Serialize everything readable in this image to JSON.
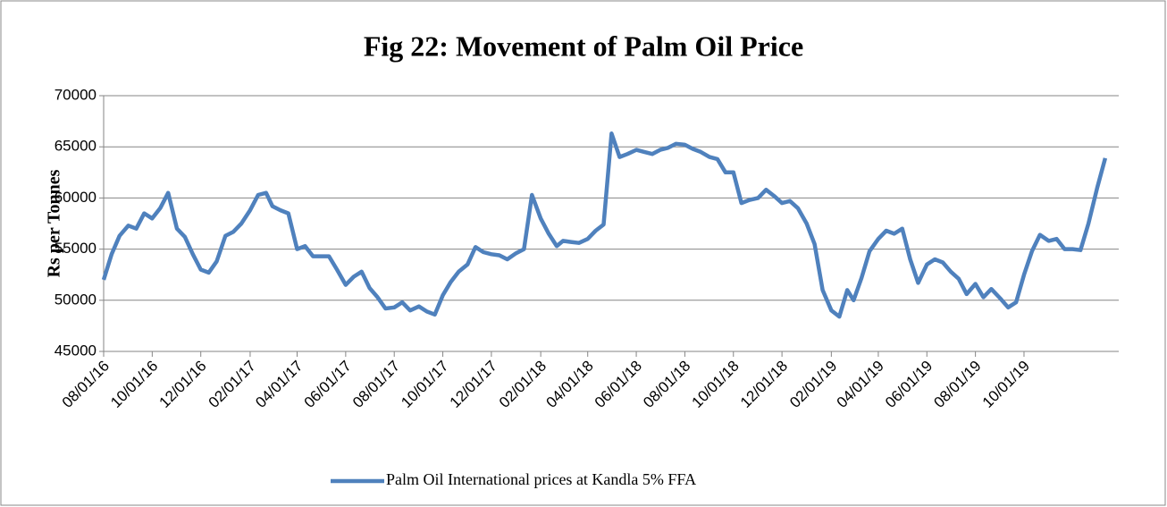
{
  "chart_data": {
    "type": "line",
    "title": "Fig 22: Movement of Palm Oil Price",
    "y_label": "Rs per Tonnes",
    "x": [
      "08/01/16",
      "08/11/16",
      "08/21/16",
      "09/01/16",
      "09/11/16",
      "09/21/16",
      "10/01/16",
      "10/11/16",
      "10/21/16",
      "11/01/16",
      "11/11/16",
      "11/21/16",
      "12/01/16",
      "12/11/16",
      "12/21/16",
      "01/01/17",
      "01/11/17",
      "01/21/17",
      "02/01/17",
      "02/11/17",
      "02/21/17",
      "03/01/17",
      "03/11/17",
      "03/21/17",
      "04/01/17",
      "04/11/17",
      "04/21/17",
      "05/01/17",
      "05/11/17",
      "05/21/17",
      "06/01/17",
      "06/11/17",
      "06/21/17",
      "07/01/17",
      "07/11/17",
      "07/21/17",
      "08/01/17",
      "08/11/17",
      "08/21/17",
      "09/01/17",
      "09/11/17",
      "09/21/17",
      "10/01/17",
      "10/11/17",
      "10/21/17",
      "11/01/17",
      "11/11/17",
      "11/21/17",
      "12/01/17",
      "12/11/17",
      "12/21/17",
      "01/01/18",
      "01/11/18",
      "01/21/18",
      "02/01/18",
      "02/11/18",
      "02/21/18",
      "03/01/18",
      "03/11/18",
      "03/21/18",
      "04/01/18",
      "04/11/18",
      "04/21/18",
      "05/01/18",
      "05/11/18",
      "05/21/18",
      "06/01/18",
      "06/11/18",
      "06/21/18",
      "07/01/18",
      "07/11/18",
      "07/21/18",
      "08/01/18",
      "08/11/18",
      "08/21/18",
      "09/01/18",
      "09/11/18",
      "09/21/18",
      "10/01/18",
      "10/11/18",
      "10/21/18",
      "11/01/18",
      "11/11/18",
      "11/21/18",
      "12/01/18",
      "12/11/18",
      "12/21/18",
      "01/01/19",
      "01/11/19",
      "01/21/19",
      "02/01/19",
      "02/11/19",
      "02/21/19",
      "03/01/19",
      "03/11/19",
      "03/21/19",
      "04/01/19",
      "04/11/19",
      "04/21/19",
      "05/01/19",
      "05/11/19",
      "05/21/19",
      "06/01/19",
      "06/11/19",
      "06/21/19",
      "07/01/19",
      "07/11/19",
      "07/21/19",
      "08/01/19",
      "08/11/19",
      "08/21/19",
      "09/01/19",
      "09/11/19",
      "09/21/19",
      "10/01/19",
      "10/11/19",
      "10/21/19",
      "11/01/19",
      "11/11/19",
      "11/21/19",
      "12/01/19",
      "12/11/19",
      "12/21/19",
      "01/01/20",
      "01/11/20"
    ],
    "series": [
      {
        "name": "Palm Oil International prices at Kandla 5% FFA",
        "color": "#4f81bd",
        "values": [
          52000,
          54500,
          56300,
          57300,
          57000,
          58500,
          58000,
          59000,
          60500,
          57000,
          56200,
          54500,
          53000,
          52700,
          53800,
          56300,
          56700,
          57500,
          58800,
          60300,
          60500,
          59200,
          58800,
          58500,
          55000,
          55300,
          54300,
          54300,
          54300,
          53000,
          51500,
          52300,
          52800,
          51200,
          50300,
          49200,
          49300,
          49800,
          49000,
          49400,
          48900,
          48600,
          50500,
          51800,
          52800,
          53500,
          55200,
          54700,
          54500,
          54400,
          54000,
          54600,
          55000,
          60300,
          58000,
          56500,
          55300,
          55800,
          55700,
          55600,
          56000,
          56800,
          57400,
          66300,
          64000,
          64300,
          64700,
          64500,
          64300,
          64700,
          64900,
          65300,
          65200,
          64800,
          64500,
          64000,
          63800,
          62500,
          62500,
          59500,
          59800,
          60000,
          60800,
          60200,
          59500,
          59700,
          59000,
          57500,
          55500,
          51000,
          49000,
          48400,
          51000,
          50000,
          52200,
          54800,
          56000,
          56800,
          56500,
          57000,
          54000,
          51700,
          53500,
          54000,
          53700,
          52800,
          52100,
          50600,
          51600,
          50300,
          51100,
          50200,
          49300,
          49800,
          52500,
          54800,
          56400,
          55800,
          56000,
          55000,
          55000,
          54900,
          57500,
          61000,
          63900
        ]
      }
    ],
    "xlim": [
      "08/01/16",
      "01/28/20"
    ],
    "xticks": [
      "08/01/16",
      "10/01/16",
      "12/01/16",
      "02/01/17",
      "04/01/17",
      "06/01/17",
      "08/01/17",
      "10/01/17",
      "12/01/17",
      "02/01/18",
      "04/01/18",
      "06/01/18",
      "08/01/18",
      "10/01/18",
      "12/01/18",
      "02/01/19",
      "04/01/19",
      "06/01/19",
      "08/01/19",
      "10/01/19"
    ],
    "ylim": [
      45000,
      70000
    ],
    "yticks": [
      45000,
      50000,
      55000,
      60000,
      65000,
      70000
    ],
    "grid": true,
    "legend": "bottom"
  }
}
